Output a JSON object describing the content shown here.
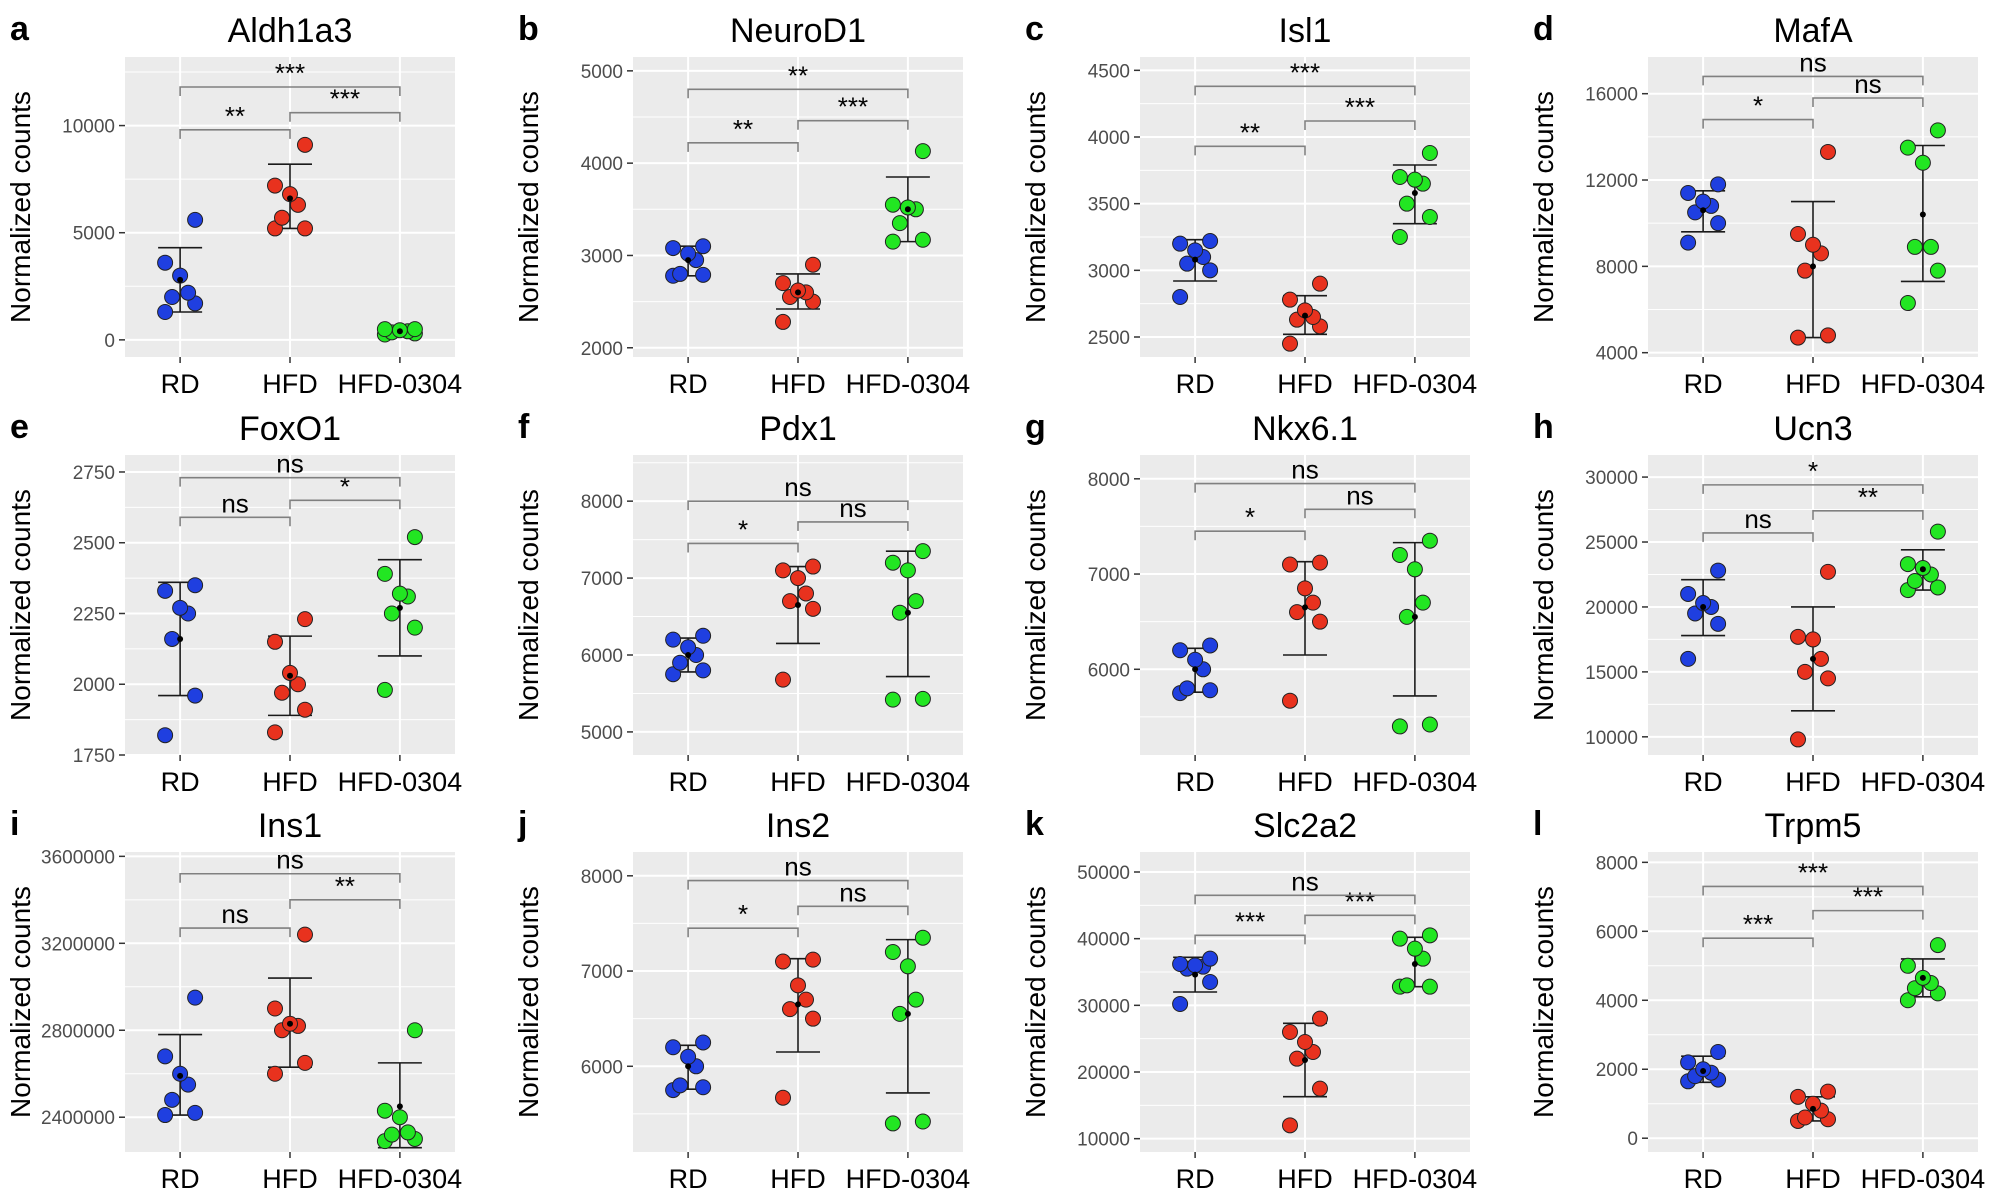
{
  "figure": {
    "y_axis_title": "Normalized counts",
    "groups": [
      "RD",
      "HFD",
      "HFD-0304"
    ],
    "colors": {
      "RD": "#1f3fe0",
      "HFD": "#e8321e",
      "HFD-0304": "#22e622",
      "panel_bg": "#ebebeb",
      "grid": "#ffffff"
    }
  },
  "chart_data": [
    {
      "type": "scatter",
      "letter": "a",
      "title": "Aldh1a3",
      "ylim": [
        -800,
        13200
      ],
      "ticks": [
        0,
        5000,
        10000
      ],
      "tick_labels": [
        "0",
        "5000",
        "10000"
      ],
      "series": [
        {
          "name": "RD",
          "points": [
            1300,
            1700,
            2000,
            2200,
            3000,
            3600,
            5600
          ],
          "mean": 2800,
          "lower": 1300,
          "upper": 4300
        },
        {
          "name": "HFD",
          "points": [
            5200,
            5200,
            5700,
            6300,
            6800,
            7200,
            9100
          ],
          "mean": 6600,
          "lower": 5200,
          "upper": 8200
        },
        {
          "name": "HFD-0304",
          "points": [
            250,
            300,
            350,
            400,
            450,
            500,
            500
          ],
          "mean": 400,
          "lower": 250,
          "upper": 550
        }
      ],
      "comparisons": [
        {
          "from": 0,
          "to": 1,
          "label": "**",
          "y": 9800
        },
        {
          "from": 1,
          "to": 2,
          "label": "***",
          "y": 10600
        },
        {
          "from": 0,
          "to": 2,
          "label": "***",
          "y": 11800
        }
      ]
    },
    {
      "type": "scatter",
      "letter": "b",
      "title": "NeuroD1",
      "ylim": [
        1900,
        5150
      ],
      "ticks": [
        2000,
        3000,
        4000,
        5000
      ],
      "tick_labels": [
        "2000",
        "3000",
        "4000",
        "5000"
      ],
      "series": [
        {
          "name": "RD",
          "points": [
            2780,
            2790,
            2800,
            2950,
            3020,
            3080,
            3100
          ],
          "mean": 2950,
          "lower": 2780,
          "upper": 3100
        },
        {
          "name": "HFD",
          "points": [
            2280,
            2500,
            2550,
            2600,
            2620,
            2700,
            2900
          ],
          "mean": 2600,
          "lower": 2420,
          "upper": 2800
        },
        {
          "name": "HFD-0304",
          "points": [
            3150,
            3170,
            3350,
            3500,
            3520,
            3550,
            4130
          ],
          "mean": 3500,
          "lower": 3150,
          "upper": 3850
        }
      ],
      "comparisons": [
        {
          "from": 0,
          "to": 1,
          "label": "**",
          "y": 4220
        },
        {
          "from": 1,
          "to": 2,
          "label": "***",
          "y": 4460
        },
        {
          "from": 0,
          "to": 2,
          "label": "**",
          "y": 4800
        }
      ]
    },
    {
      "type": "scatter",
      "letter": "c",
      "title": "Isl1",
      "ylim": [
        2350,
        4600
      ],
      "ticks": [
        2500,
        3000,
        3500,
        4000,
        4500
      ],
      "tick_labels": [
        "2500",
        "3000",
        "3500",
        "4000",
        "4500"
      ],
      "series": [
        {
          "name": "RD",
          "points": [
            2800,
            3000,
            3050,
            3100,
            3150,
            3200,
            3220
          ],
          "mean": 3080,
          "lower": 2920,
          "upper": 3230
        },
        {
          "name": "HFD",
          "points": [
            2450,
            2580,
            2630,
            2650,
            2700,
            2780,
            2900
          ],
          "mean": 2660,
          "lower": 2520,
          "upper": 2810
        },
        {
          "name": "HFD-0304",
          "points": [
            3250,
            3400,
            3500,
            3650,
            3680,
            3700,
            3880
          ],
          "mean": 3580,
          "lower": 3350,
          "upper": 3790
        }
      ],
      "comparisons": [
        {
          "from": 0,
          "to": 1,
          "label": "**",
          "y": 3930
        },
        {
          "from": 1,
          "to": 2,
          "label": "***",
          "y": 4120
        },
        {
          "from": 0,
          "to": 2,
          "label": "***",
          "y": 4380
        }
      ]
    },
    {
      "type": "scatter",
      "letter": "d",
      "title": "MafA",
      "ylim": [
        3800,
        17700
      ],
      "ticks": [
        4000,
        8000,
        12000,
        16000
      ],
      "tick_labels": [
        "4000",
        "8000",
        "12000",
        "16000"
      ],
      "series": [
        {
          "name": "RD",
          "points": [
            9100,
            10000,
            10500,
            10800,
            11000,
            11400,
            11800
          ],
          "mean": 10600,
          "lower": 9600,
          "upper": 11500
        },
        {
          "name": "HFD",
          "points": [
            4700,
            4800,
            7800,
            8600,
            9000,
            9500,
            13300
          ],
          "mean": 8000,
          "lower": 4700,
          "upper": 11000
        },
        {
          "name": "HFD-0304",
          "points": [
            6300,
            7800,
            8900,
            8900,
            12800,
            13500,
            14300
          ],
          "mean": 10400,
          "lower": 7300,
          "upper": 13600
        }
      ],
      "comparisons": [
        {
          "from": 0,
          "to": 1,
          "label": "*",
          "y": 14800
        },
        {
          "from": 1,
          "to": 2,
          "label": "ns",
          "y": 15800
        },
        {
          "from": 0,
          "to": 2,
          "label": "ns",
          "y": 16800
        }
      ]
    },
    {
      "type": "scatter",
      "letter": "e",
      "title": "FoxO1",
      "ylim": [
        1750,
        2810
      ],
      "ticks": [
        1750,
        2000,
        2250,
        2500,
        2750
      ],
      "tick_labels": [
        "1750",
        "2000",
        "2250",
        "2500",
        "2750"
      ],
      "series": [
        {
          "name": "RD",
          "points": [
            1820,
            1960,
            2160,
            2250,
            2270,
            2330,
            2350
          ],
          "mean": 2160,
          "lower": 1960,
          "upper": 2360
        },
        {
          "name": "HFD",
          "points": [
            1830,
            1910,
            1970,
            2000,
            2040,
            2150,
            2230
          ],
          "mean": 2030,
          "lower": 1890,
          "upper": 2170
        },
        {
          "name": "HFD-0304",
          "points": [
            1980,
            2200,
            2250,
            2310,
            2320,
            2390,
            2520
          ],
          "mean": 2270,
          "lower": 2100,
          "upper": 2440
        }
      ],
      "comparisons": [
        {
          "from": 0,
          "to": 1,
          "label": "ns",
          "y": 2590
        },
        {
          "from": 1,
          "to": 2,
          "label": "*",
          "y": 2650
        },
        {
          "from": 0,
          "to": 2,
          "label": "ns",
          "y": 2730
        }
      ]
    },
    {
      "type": "scatter",
      "letter": "f",
      "title": "Pdx1",
      "ylim": [
        4700,
        8600
      ],
      "ticks": [
        5000,
        6000,
        7000,
        8000
      ],
      "tick_labels": [
        "5000",
        "6000",
        "7000",
        "8000"
      ],
      "series": [
        {
          "name": "RD",
          "points": [
            5750,
            5800,
            5900,
            6000,
            6100,
            6200,
            6250
          ],
          "mean": 6000,
          "lower": 5780,
          "upper": 6220
        },
        {
          "name": "HFD",
          "points": [
            5680,
            6600,
            6700,
            6800,
            7000,
            7100,
            7150
          ],
          "mean": 6650,
          "lower": 6150,
          "upper": 7150
        },
        {
          "name": "HFD-0304",
          "points": [
            5420,
            5430,
            6550,
            6700,
            7100,
            7200,
            7350
          ],
          "mean": 6550,
          "lower": 5720,
          "upper": 7350
        }
      ],
      "comparisons": [
        {
          "from": 0,
          "to": 1,
          "label": "*",
          "y": 7450
        },
        {
          "from": 1,
          "to": 2,
          "label": "ns",
          "y": 7730
        },
        {
          "from": 0,
          "to": 2,
          "label": "ns",
          "y": 8000
        }
      ]
    },
    {
      "type": "scatter",
      "letter": "g",
      "title": "Nkx6.1",
      "ylim": [
        5100,
        8250
      ],
      "ticks": [
        6000,
        7000,
        8000
      ],
      "tick_labels": [
        "6000",
        "7000",
        "8000"
      ],
      "series": [
        {
          "name": "RD",
          "points": [
            5750,
            5780,
            5800,
            6000,
            6100,
            6200,
            6250
          ],
          "mean": 6000,
          "lower": 5760,
          "upper": 6220
        },
        {
          "name": "HFD",
          "points": [
            5670,
            6500,
            6600,
            6700,
            6850,
            7100,
            7120
          ],
          "mean": 6650,
          "lower": 6150,
          "upper": 7130
        },
        {
          "name": "HFD-0304",
          "points": [
            5400,
            5420,
            6550,
            6700,
            7050,
            7200,
            7350
          ],
          "mean": 6550,
          "lower": 5720,
          "upper": 7330
        }
      ],
      "comparisons": [
        {
          "from": 0,
          "to": 1,
          "label": "*",
          "y": 7450
        },
        {
          "from": 1,
          "to": 2,
          "label": "ns",
          "y": 7680
        },
        {
          "from": 0,
          "to": 2,
          "label": "ns",
          "y": 7950
        }
      ]
    },
    {
      "type": "scatter",
      "letter": "h",
      "title": "Ucn3",
      "ylim": [
        8600,
        31700
      ],
      "ticks": [
        10000,
        15000,
        20000,
        25000,
        30000
      ],
      "tick_labels": [
        "10000",
        "15000",
        "20000",
        "25000",
        "30000"
      ],
      "series": [
        {
          "name": "RD",
          "points": [
            16000,
            18700,
            19500,
            20000,
            20300,
            21000,
            22800
          ],
          "mean": 20000,
          "lower": 17800,
          "upper": 22100
        },
        {
          "name": "HFD",
          "points": [
            9800,
            14500,
            15000,
            16000,
            17500,
            17700,
            22700
          ],
          "mean": 16000,
          "lower": 12000,
          "upper": 20000
        },
        {
          "name": "HFD-0304",
          "points": [
            21300,
            21500,
            22000,
            22500,
            23000,
            23300,
            25800
          ],
          "mean": 22900,
          "lower": 21300,
          "upper": 24400
        }
      ],
      "comparisons": [
        {
          "from": 0,
          "to": 1,
          "label": "ns",
          "y": 25700
        },
        {
          "from": 1,
          "to": 2,
          "label": "**",
          "y": 27400
        },
        {
          "from": 0,
          "to": 2,
          "label": "*",
          "y": 29400
        }
      ]
    },
    {
      "type": "scatter",
      "letter": "i",
      "title": "Ins1",
      "ylim": [
        2240000,
        3620000
      ],
      "ticks": [
        2400000,
        2800000,
        3200000,
        3600000
      ],
      "tick_labels": [
        "2400000",
        "2800000",
        "3200000",
        "3600000"
      ],
      "series": [
        {
          "name": "RD",
          "points": [
            2410000,
            2420000,
            2480000,
            2550000,
            2600000,
            2680000,
            2950000
          ],
          "mean": 2590000,
          "lower": 2410000,
          "upper": 2780000
        },
        {
          "name": "HFD",
          "points": [
            2600000,
            2650000,
            2800000,
            2820000,
            2830000,
            2900000,
            3240000
          ],
          "mean": 2830000,
          "lower": 2630000,
          "upper": 3040000
        },
        {
          "name": "HFD-0304",
          "points": [
            2290000,
            2300000,
            2320000,
            2330000,
            2400000,
            2430000,
            2800000
          ],
          "mean": 2450000,
          "lower": 2260000,
          "upper": 2650000
        }
      ],
      "comparisons": [
        {
          "from": 0,
          "to": 1,
          "label": "ns",
          "y": 3270000
        },
        {
          "from": 1,
          "to": 2,
          "label": "**",
          "y": 3400000
        },
        {
          "from": 0,
          "to": 2,
          "label": "ns",
          "y": 3520000
        }
      ]
    },
    {
      "type": "scatter",
      "letter": "j",
      "title": "Ins2",
      "ylim": [
        5100,
        8250
      ],
      "ticks": [
        6000,
        7000,
        8000
      ],
      "tick_labels": [
        "6000",
        "7000",
        "8000"
      ],
      "series": [
        {
          "name": "RD",
          "points": [
            5750,
            5780,
            5800,
            6000,
            6100,
            6200,
            6250
          ],
          "mean": 6000,
          "lower": 5760,
          "upper": 6220
        },
        {
          "name": "HFD",
          "points": [
            5670,
            6500,
            6600,
            6700,
            6850,
            7100,
            7120
          ],
          "mean": 6650,
          "lower": 6150,
          "upper": 7130
        },
        {
          "name": "HFD-0304",
          "points": [
            5400,
            5420,
            6550,
            6700,
            7050,
            7200,
            7350
          ],
          "mean": 6550,
          "lower": 5720,
          "upper": 7330
        }
      ],
      "comparisons": [
        {
          "from": 0,
          "to": 1,
          "label": "*",
          "y": 7450
        },
        {
          "from": 1,
          "to": 2,
          "label": "ns",
          "y": 7680
        },
        {
          "from": 0,
          "to": 2,
          "label": "ns",
          "y": 7950
        }
      ]
    },
    {
      "type": "scatter",
      "letter": "k",
      "title": "Slc2a2",
      "ylim": [
        8000,
        53000
      ],
      "ticks": [
        10000,
        20000,
        30000,
        40000,
        50000
      ],
      "tick_labels": [
        "10000",
        "20000",
        "30000",
        "40000",
        "50000"
      ],
      "series": [
        {
          "name": "RD",
          "points": [
            30200,
            33500,
            35500,
            35800,
            36000,
            36200,
            37000
          ],
          "mean": 34600,
          "lower": 32000,
          "upper": 37200
        },
        {
          "name": "HFD",
          "points": [
            12000,
            17500,
            22000,
            23000,
            24500,
            26000,
            28000
          ],
          "mean": 21800,
          "lower": 16300,
          "upper": 27300
        },
        {
          "name": "HFD-0304",
          "points": [
            32800,
            32800,
            33000,
            37000,
            38500,
            40000,
            40500
          ],
          "mean": 36200,
          "lower": 32800,
          "upper": 40200
        }
      ],
      "comparisons": [
        {
          "from": 0,
          "to": 1,
          "label": "***",
          "y": 40500
        },
        {
          "from": 1,
          "to": 2,
          "label": "***",
          "y": 43500
        },
        {
          "from": 0,
          "to": 2,
          "label": "ns",
          "y": 46500
        }
      ]
    },
    {
      "type": "scatter",
      "letter": "l",
      "title": "Trpm5",
      "ylim": [
        -400,
        8300
      ],
      "ticks": [
        0,
        2000,
        4000,
        6000,
        8000
      ],
      "tick_labels": [
        "0",
        "2000",
        "4000",
        "6000",
        "8000"
      ],
      "series": [
        {
          "name": "RD",
          "points": [
            1650,
            1700,
            1800,
            1900,
            2000,
            2200,
            2500
          ],
          "mean": 1950,
          "lower": 1620,
          "upper": 2380
        },
        {
          "name": "HFD",
          "points": [
            500,
            550,
            600,
            800,
            1000,
            1200,
            1350
          ],
          "mean": 850,
          "lower": 500,
          "upper": 1200
        },
        {
          "name": "HFD-0304",
          "points": [
            4000,
            4200,
            4350,
            4500,
            4650,
            5000,
            5600
          ],
          "mean": 4650,
          "lower": 4100,
          "upper": 5200
        }
      ],
      "comparisons": [
        {
          "from": 0,
          "to": 1,
          "label": "***",
          "y": 5800
        },
        {
          "from": 1,
          "to": 2,
          "label": "***",
          "y": 6600
        },
        {
          "from": 0,
          "to": 2,
          "label": "***",
          "y": 7300
        }
      ]
    }
  ]
}
